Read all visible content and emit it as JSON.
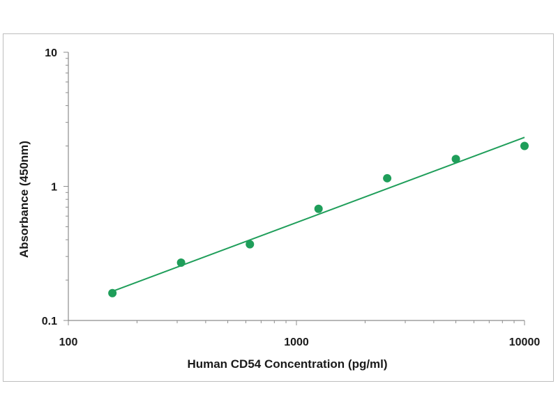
{
  "chart_data": {
    "type": "scatter",
    "title": "",
    "xlabel": "Human CD54 Concentration (pg/ml)",
    "ylabel": "Absorbance (450nm)",
    "x_scale": "log",
    "y_scale": "log",
    "xlim": [
      100,
      10000
    ],
    "ylim": [
      0.1,
      10
    ],
    "x_ticks": [
      "100",
      "1000",
      "10000"
    ],
    "y_ticks": [
      "0.1",
      "1",
      "10"
    ],
    "grid": false,
    "legend": "none",
    "series": [
      {
        "x": [
          156,
          312,
          625,
          1250,
          2500,
          5000,
          10000
        ],
        "y": [
          0.16,
          0.27,
          0.37,
          0.68,
          1.15,
          1.6,
          2.0
        ]
      }
    ],
    "trendline": {
      "x": [
        156,
        10000
      ],
      "y": [
        0.165,
        2.32
      ]
    },
    "colors": {
      "marker": "#1f9e5a",
      "line": "#1f9e5a",
      "axis": "#8c8c8c"
    }
  }
}
